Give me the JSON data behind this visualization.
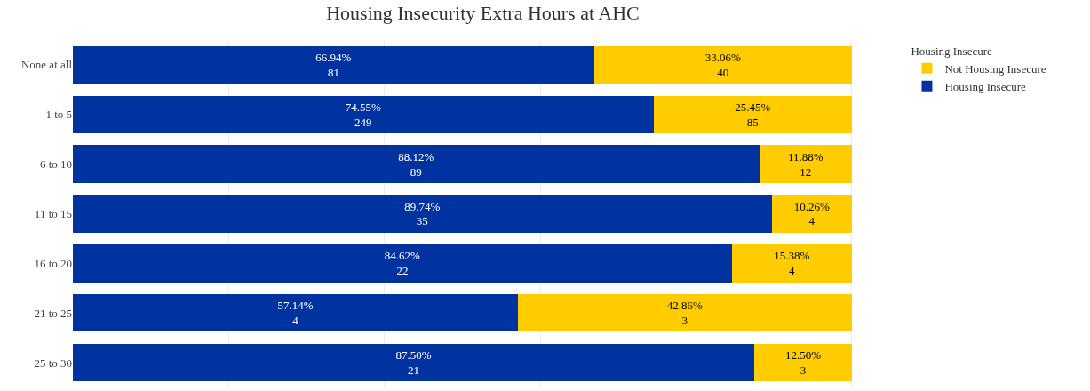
{
  "chart_data": {
    "type": "bar",
    "orientation": "horizontal",
    "stacked": true,
    "title": "Housing Insecurity Extra Hours at AHC",
    "legend_title": "Housing Insecure",
    "categories": [
      "None at all",
      "1 to 5",
      "6 to 10",
      "11 to 15",
      "16 to 20",
      "21 to 25",
      "25 to 30"
    ],
    "series": [
      {
        "name": "Housing Insecure",
        "color": "#0033a0",
        "values": [
          66.94,
          74.55,
          88.12,
          89.74,
          84.62,
          57.14,
          87.5
        ],
        "value_labels": [
          "66.94%\n81",
          "74.55%\n249",
          "88.12%\n89",
          "89.74%\n35",
          "84.62%\n22",
          "57.14%\n4",
          "87.50%\n21"
        ]
      },
      {
        "name": "Not Housing Insecure",
        "color": "#ffcc00",
        "values": [
          33.06,
          25.45,
          11.88,
          10.26,
          15.38,
          42.86,
          12.5
        ],
        "value_labels": [
          "33.06%\n40",
          "25.45%\n85",
          "11.88%\n12",
          "10.26%\n4",
          "15.38%\n4",
          "42.86%\n3",
          "12.50%\n3"
        ]
      }
    ],
    "grid": "x",
    "tick_labels": "y",
    "legend": "top right"
  }
}
